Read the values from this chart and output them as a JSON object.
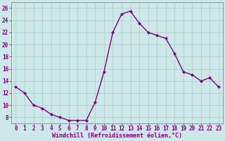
{
  "x": [
    0,
    1,
    2,
    3,
    4,
    5,
    6,
    7,
    8,
    9,
    10,
    11,
    12,
    13,
    14,
    15,
    16,
    17,
    18,
    19,
    20,
    21,
    22,
    23
  ],
  "y": [
    13,
    12,
    10,
    9.5,
    8.5,
    8,
    7.5,
    7.5,
    7.5,
    10.5,
    15.5,
    22,
    25,
    25.5,
    23.5,
    22,
    21.5,
    21,
    18.5,
    15.5,
    15,
    14,
    14.5,
    13
  ],
  "line_color": "#800080",
  "marker": "D",
  "marker_size": 2.0,
  "linewidth": 1.0,
  "background_color": "#cce8e8",
  "grid_color": "#aacccc",
  "xlabel": "Windchill (Refroidissement éolien,°C)",
  "xlabel_color": "#800080",
  "xlabel_fontsize": 6.0,
  "tick_color": "#800080",
  "tick_fontsize": 5.5,
  "ylim": [
    7,
    27
  ],
  "xlim": [
    -0.5,
    23.5
  ],
  "yticks": [
    8,
    10,
    12,
    14,
    16,
    18,
    20,
    22,
    24,
    26
  ],
  "xticks": [
    0,
    1,
    2,
    3,
    4,
    5,
    6,
    7,
    8,
    9,
    10,
    11,
    12,
    13,
    14,
    15,
    16,
    17,
    18,
    19,
    20,
    21,
    22,
    23
  ]
}
